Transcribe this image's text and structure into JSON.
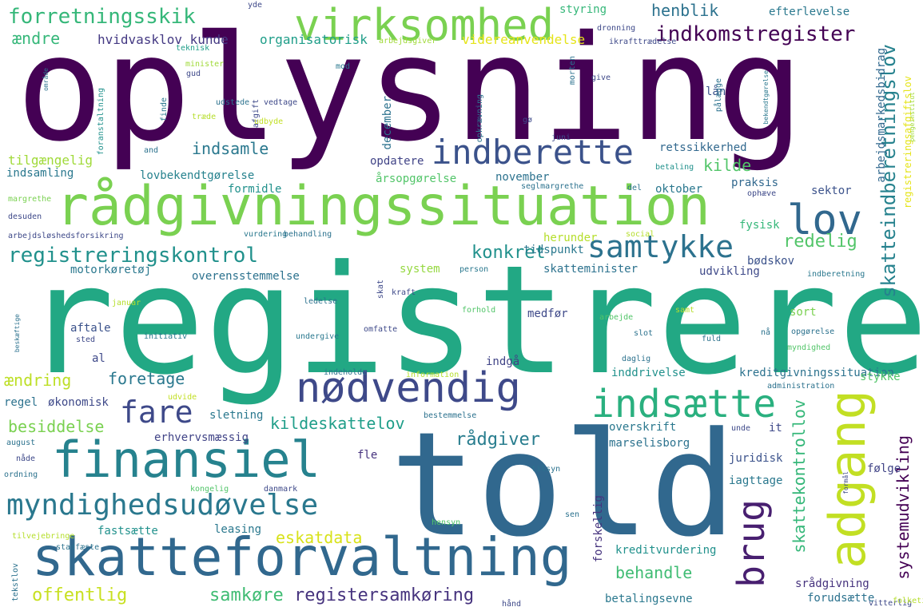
{
  "palette": {
    "deep_purple": "#440154",
    "purple": "#482878",
    "indigo": "#3e4989",
    "slate_blue": "#31688e",
    "teal_blue": "#26828e",
    "teal": "#1f9e89",
    "green": "#35b779",
    "light_green": "#6ece58",
    "lime": "#b5de2b",
    "yellow": "#fde725",
    "background": "#ffffff"
  },
  "words": [
    {
      "text": "oplysning",
      "color": "#440154"
    },
    {
      "text": "registrere",
      "color": "#22a884"
    },
    {
      "text": "told",
      "color": "#31688e"
    },
    {
      "text": "rådgivningssituation",
      "color": "#7ad151"
    },
    {
      "text": "virksomhed",
      "color": "#7ad151"
    },
    {
      "text": "skatteforvaltning",
      "color": "#31688e"
    },
    {
      "text": "finansiel",
      "color": "#26828e"
    },
    {
      "text": "nødvendig",
      "color": "#3e4989"
    },
    {
      "text": "indberette",
      "color": "#3b528b"
    },
    {
      "text": "adgang",
      "color": "#c2df23"
    },
    {
      "text": "indsætte",
      "color": "#2ab07f"
    },
    {
      "text": "myndighedsudøvelse",
      "color": "#2a788e"
    },
    {
      "text": "lov",
      "color": "#31688e"
    },
    {
      "text": "brug",
      "color": "#481f70"
    },
    {
      "text": "samtykke",
      "color": "#2c728e"
    },
    {
      "text": "fare",
      "color": "#3e4989"
    },
    {
      "text": "forretningsskik",
      "color": "#35b779"
    },
    {
      "text": "registreringskontrol",
      "color": "#21918c"
    },
    {
      "text": "indkomstregister",
      "color": "#440154"
    },
    {
      "text": "henblik",
      "color": "#2c728e"
    },
    {
      "text": "konkret",
      "color": "#21918c"
    },
    {
      "text": "redelig",
      "color": "#52c569"
    },
    {
      "text": "skatteindberetningslov",
      "color": "#26828e"
    },
    {
      "text": "skattekontrollov",
      "color": "#35b779"
    },
    {
      "text": "systemudvikling",
      "color": "#440154"
    },
    {
      "text": "rådgiver",
      "color": "#287d8e"
    },
    {
      "text": "offentlig",
      "color": "#c8e020"
    },
    {
      "text": "samkøre",
      "color": "#3fbc73"
    },
    {
      "text": "registersamkøring",
      "color": "#46337e"
    },
    {
      "text": "eskatdata",
      "color": "#d8e219"
    },
    {
      "text": "behandle",
      "color": "#3fbc73"
    },
    {
      "text": "kildeskattelov",
      "color": "#1f9e89"
    },
    {
      "text": "indsamle",
      "color": "#2a788e"
    },
    {
      "text": "foretage",
      "color": "#2a788e"
    },
    {
      "text": "kilde",
      "color": "#52c569"
    },
    {
      "text": "besiddelse",
      "color": "#7ad151"
    },
    {
      "text": "ændring",
      "color": "#bddf26"
    },
    {
      "text": "ændre",
      "color": "#35b779"
    },
    {
      "text": "hvidvasklov kunde",
      "color": "#443983"
    },
    {
      "text": "organisatorisk",
      "color": "#1f9e89"
    },
    {
      "text": "videreanvendelse",
      "color": "#e5e419"
    },
    {
      "text": "styring",
      "color": "#35b779"
    },
    {
      "text": "efterlevelse",
      "color": "#2a788e"
    },
    {
      "text": "arbejdsmarkedsbidrag",
      "color": "#31688e"
    },
    {
      "text": "registreringsafgiftslov",
      "color": "#e5e419"
    },
    {
      "text": "retssikkerhed",
      "color": "#31688e"
    },
    {
      "text": "tilgængelig",
      "color": "#a0da39"
    },
    {
      "text": "indsamling",
      "color": "#2a788e"
    },
    {
      "text": "lovbekendtgørelse",
      "color": "#26828e"
    },
    {
      "text": "formidle",
      "color": "#21918c"
    },
    {
      "text": "opdatere",
      "color": "#414487"
    },
    {
      "text": "årsopgørelse",
      "color": "#52c569"
    },
    {
      "text": "november",
      "color": "#2c728e"
    },
    {
      "text": "december",
      "color": "#2c728e"
    },
    {
      "text": "oktober",
      "color": "#2a788e"
    },
    {
      "text": "praksis",
      "color": "#31688e"
    },
    {
      "text": "sektor",
      "color": "#3b528b"
    },
    {
      "text": "fysisk",
      "color": "#35b779"
    },
    {
      "text": "herunder",
      "color": "#b5de2b"
    },
    {
      "text": "tidspunkt",
      "color": "#2a788e"
    },
    {
      "text": "system",
      "color": "#95d840"
    },
    {
      "text": "skatteminister",
      "color": "#2c728e"
    },
    {
      "text": "bødskov",
      "color": "#3b528b"
    },
    {
      "text": "udvikling",
      "color": "#3e4989"
    },
    {
      "text": "motorkøretøj",
      "color": "#2a788e"
    },
    {
      "text": "overensstemmelse",
      "color": "#2c728e"
    },
    {
      "text": "aftale",
      "color": "#3b528b"
    },
    {
      "text": "al",
      "color": "#3e4989"
    },
    {
      "text": "medfør",
      "color": "#3e4989"
    },
    {
      "text": "sort",
      "color": "#7ad151"
    },
    {
      "text": "indgå",
      "color": "#414487"
    },
    {
      "text": "inddrivelse",
      "color": "#21918c"
    },
    {
      "text": "kreditgivningssituation",
      "color": "#2c728e"
    },
    {
      "text": "stykke",
      "color": "#52c569"
    },
    {
      "text": "regel",
      "color": "#2c728e"
    },
    {
      "text": "økonomisk",
      "color": "#3e4989"
    },
    {
      "text": "sletning",
      "color": "#2a788e"
    },
    {
      "text": "erhvervsmæssig",
      "color": "#414487"
    },
    {
      "text": "overskrift",
      "color": "#2a788e"
    },
    {
      "text": "marselisborg",
      "color": "#2c728e"
    },
    {
      "text": "it",
      "color": "#3e4989"
    },
    {
      "text": "fle",
      "color": "#46337e"
    },
    {
      "text": "juridisk",
      "color": "#3b528b"
    },
    {
      "text": "følge",
      "color": "#414487"
    },
    {
      "text": "iagttage",
      "color": "#2a788e"
    },
    {
      "text": "forskellig",
      "color": "#46337e"
    },
    {
      "text": "leasing",
      "color": "#2a788e"
    },
    {
      "text": "fastsætte",
      "color": "#21918c"
    },
    {
      "text": "kreditvurdering",
      "color": "#21918c"
    },
    {
      "text": "srådgivning",
      "color": "#46337e"
    },
    {
      "text": "betalingsevne",
      "color": "#2a788e"
    },
    {
      "text": "forudsætte",
      "color": "#2c728e"
    },
    {
      "text": "lån",
      "color": "#3b528b"
    },
    {
      "text": "arbejdsgiver",
      "color": "#a0da39"
    },
    {
      "text": "dronning",
      "color": "#3e4989"
    },
    {
      "text": "ikrafttrædelse",
      "color": "#3e4989"
    },
    {
      "text": "teknisk",
      "color": "#1f9e89"
    },
    {
      "text": "minister",
      "color": "#a0da39"
    },
    {
      "text": "gud",
      "color": "#3e4989"
    },
    {
      "text": "udstede",
      "color": "#2c728e"
    },
    {
      "text": "vedtage",
      "color": "#3e4989"
    },
    {
      "text": "træde",
      "color": "#b5de2b"
    },
    {
      "text": "afgift",
      "color": "#3e4989"
    },
    {
      "text": "udbyde",
      "color": "#c2df23"
    },
    {
      "text": "mod",
      "color": "#2a788e"
    },
    {
      "text": "give",
      "color": "#3e4989"
    },
    {
      "text": "juni",
      "color": "#3e4989"
    },
    {
      "text": "gø",
      "color": "#3e4989"
    },
    {
      "text": "and",
      "color": "#2c728e"
    },
    {
      "text": "område",
      "color": "#2c728e"
    },
    {
      "text": "foranstaltning",
      "color": "#21918c"
    },
    {
      "text": "finde",
      "color": "#2a788e"
    },
    {
      "text": "opkrævning",
      "color": "#2c728e"
    },
    {
      "text": "morten",
      "color": "#2c728e"
    },
    {
      "text": "pålægge",
      "color": "#2c728e"
    },
    {
      "text": "bekendtgørelse",
      "color": "#2a788e"
    },
    {
      "text": "pengeinstitut",
      "color": "#a0da39"
    },
    {
      "text": "betaling",
      "color": "#21918c"
    },
    {
      "text": "ophæve",
      "color": "#3e4989"
    },
    {
      "text": "seglmargrethe",
      "color": "#2c728e"
    },
    {
      "text": "del",
      "color": "#2c728e"
    },
    {
      "text": "margrethe",
      "color": "#7ad151"
    },
    {
      "text": "desuden",
      "color": "#3e4989"
    },
    {
      "text": "arbejdsløshedsforsikring",
      "color": "#3e4989"
    },
    {
      "text": "vurdering",
      "color": "#2a788e"
    },
    {
      "text": "behandling",
      "color": "#2c728e"
    },
    {
      "text": "social",
      "color": "#b5de2b"
    },
    {
      "text": "indberetning",
      "color": "#2a788e"
    },
    {
      "text": "person",
      "color": "#2a788e"
    },
    {
      "text": "skat",
      "color": "#3e4989"
    },
    {
      "text": "kraft",
      "color": "#3e4989"
    },
    {
      "text": "januar",
      "color": "#b5de2b"
    },
    {
      "text": "ledelse",
      "color": "#2c728e"
    },
    {
      "text": "forhold",
      "color": "#52c569"
    },
    {
      "text": "samt",
      "color": "#b5de2b"
    },
    {
      "text": "arbejde",
      "color": "#52c569"
    },
    {
      "text": "nå",
      "color": "#2c728e"
    },
    {
      "text": "slot",
      "color": "#2c728e"
    },
    {
      "text": "fuld",
      "color": "#2c728e"
    },
    {
      "text": "opgørelse",
      "color": "#2c728e"
    },
    {
      "text": "myndighed",
      "color": "#52c569"
    },
    {
      "text": "beskæftige",
      "color": "#2c728e"
    },
    {
      "text": "sted",
      "color": "#3e4989"
    },
    {
      "text": "initiativ",
      "color": "#2a788e"
    },
    {
      "text": "omfatte",
      "color": "#3e4989"
    },
    {
      "text": "undergive",
      "color": "#2a788e"
    },
    {
      "text": "daglig",
      "color": "#2c728e"
    },
    {
      "text": "indeholde",
      "color": "#2c728e"
    },
    {
      "text": "information",
      "color": "#b5de2b"
    },
    {
      "text": "administration",
      "color": "#2c728e"
    },
    {
      "text": "udvide",
      "color": "#c2df23"
    },
    {
      "text": "bestemmelse",
      "color": "#2c728e"
    },
    {
      "text": "unde",
      "color": "#3e4989"
    },
    {
      "text": "august",
      "color": "#2c728e"
    },
    {
      "text": "nåde",
      "color": "#3e4989"
    },
    {
      "text": "ordning",
      "color": "#2c728e"
    },
    {
      "text": "tilsyn",
      "color": "#2c728e"
    },
    {
      "text": "kongelig",
      "color": "#52c569"
    },
    {
      "text": "danmark",
      "color": "#3e4989"
    },
    {
      "text": "sen",
      "color": "#2c728e"
    },
    {
      "text": "formål",
      "color": "#3e4989"
    },
    {
      "text": "hensyn",
      "color": "#52c569"
    },
    {
      "text": "tilvejebringe",
      "color": "#b5de2b"
    },
    {
      "text": "stadfæste",
      "color": "#2c728e"
    },
    {
      "text": "tekstlov",
      "color": "#2c728e"
    },
    {
      "text": "hånd",
      "color": "#3e4989"
    },
    {
      "text": "vitterlig",
      "color": "#3e4989"
    },
    {
      "text": "folketing",
      "color": "#b5de2b"
    },
    {
      "text": "yde",
      "color": "#3e4989"
    }
  ]
}
